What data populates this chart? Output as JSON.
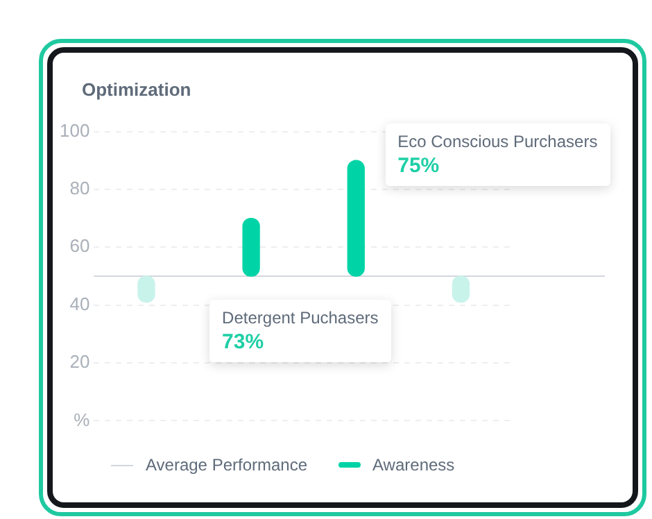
{
  "chart_data": {
    "type": "bar",
    "title": "Optimization",
    "categories": [
      null,
      null,
      null,
      null
    ],
    "series": [
      {
        "name": "Awareness",
        "color": "#00d4a6",
        "colors": [
          "#c8f3ea",
          "#00d4a6",
          "#00d4a6",
          "#c8f3ea"
        ],
        "values": [
          -9,
          20,
          40,
          -9
        ],
        "base": [
          50,
          50,
          50,
          50
        ]
      }
    ],
    "ylim": [
      0,
      100
    ],
    "yticks": [
      {
        "value": 0,
        "label": "%"
      },
      20,
      40,
      60,
      80,
      100
    ],
    "grid": "y",
    "legend": "bottom",
    "ref_lines": [
      {
        "axis": "y",
        "value": 50,
        "label": "Average Performance",
        "color": "#d3d7dd"
      }
    ],
    "annotations": [
      "Detergent Puchasers\n73%",
      "Eco Conscious Purchasers\n75%"
    ]
  }
}
